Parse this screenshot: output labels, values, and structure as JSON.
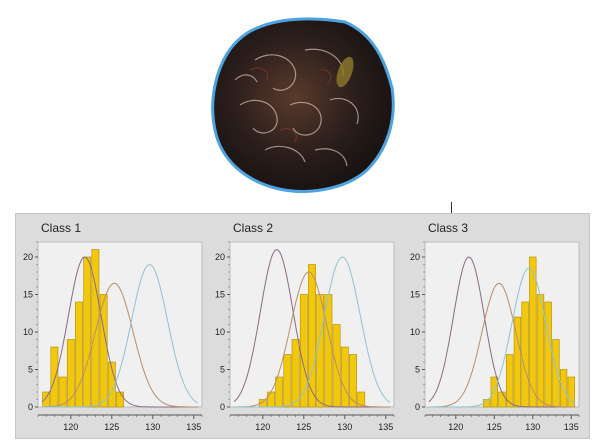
{
  "colors": {
    "bar_fill": "#f2c80f",
    "bar_stroke": "#b08a00",
    "curve_class1": "#8a6a86",
    "curve_class2": "#b88e6a",
    "curve_class3": "#8fc3d2",
    "panel_bg": "#dcdcdc",
    "plot_bg": "#f0f0f0",
    "specimen_outline": "#4da3e0"
  },
  "chart_data": [
    {
      "type": "bar",
      "title": "Class 1",
      "x_bins": [
        117,
        118,
        119,
        120,
        121,
        122,
        123,
        124,
        125,
        126,
        127,
        128,
        129,
        130,
        131,
        132,
        133,
        134,
        135
      ],
      "values": [
        2,
        8,
        4,
        9,
        14,
        20,
        21,
        15,
        6,
        2,
        0,
        0,
        0,
        0,
        0,
        0,
        0,
        0,
        0
      ],
      "xticks": [
        120,
        125,
        130,
        135
      ],
      "yticks": [
        0,
        5,
        10,
        15,
        20
      ],
      "xlim": [
        116,
        136
      ],
      "ylim": [
        0,
        22
      ],
      "curves": [
        {
          "mean": 121.7,
          "sd": 2.0,
          "peak": 20,
          "color": "curve_class1"
        },
        {
          "mean": 125.3,
          "sd": 2.3,
          "peak": 16.5,
          "color": "curve_class2"
        },
        {
          "mean": 129.6,
          "sd": 2.2,
          "peak": 19,
          "color": "curve_class3"
        }
      ]
    },
    {
      "type": "bar",
      "title": "Class 2",
      "x_bins": [
        117,
        118,
        119,
        120,
        121,
        122,
        123,
        124,
        125,
        126,
        127,
        128,
        129,
        130,
        131,
        132,
        133,
        134,
        135
      ],
      "values": [
        0,
        0,
        0,
        1,
        2,
        4,
        7,
        9,
        15,
        19,
        15,
        15,
        11,
        8,
        7,
        2,
        0,
        0,
        0
      ],
      "xticks": [
        120,
        125,
        130,
        135
      ],
      "yticks": [
        0,
        5,
        10,
        15,
        20
      ],
      "xlim": [
        116,
        136
      ],
      "ylim": [
        0,
        22
      ],
      "curves": [
        {
          "mean": 121.7,
          "sd": 2.0,
          "peak": 21,
          "color": "curve_class1"
        },
        {
          "mean": 125.6,
          "sd": 2.2,
          "peak": 18,
          "color": "curve_class2"
        },
        {
          "mean": 129.7,
          "sd": 2.2,
          "peak": 20,
          "color": "curve_class3"
        }
      ]
    },
    {
      "type": "bar",
      "title": "Class 3",
      "x_bins": [
        117,
        118,
        119,
        120,
        121,
        122,
        123,
        124,
        125,
        126,
        127,
        128,
        129,
        130,
        131,
        132,
        133,
        134,
        135
      ],
      "values": [
        0,
        0,
        0,
        0,
        0,
        0,
        0,
        1,
        4,
        2,
        7,
        12,
        14,
        20,
        15,
        14,
        9,
        5,
        4
      ],
      "xticks": [
        120,
        125,
        130,
        135
      ],
      "yticks": [
        0,
        5,
        10,
        15,
        20
      ],
      "xlim": [
        116,
        136
      ],
      "ylim": [
        0,
        22
      ],
      "curves": [
        {
          "mean": 121.7,
          "sd": 2.0,
          "peak": 20,
          "color": "curve_class1"
        },
        {
          "mean": 125.6,
          "sd": 2.2,
          "peak": 16.5,
          "color": "curve_class2"
        },
        {
          "mean": 129.5,
          "sd": 2.2,
          "peak": 18.5,
          "color": "curve_class3"
        }
      ]
    }
  ]
}
